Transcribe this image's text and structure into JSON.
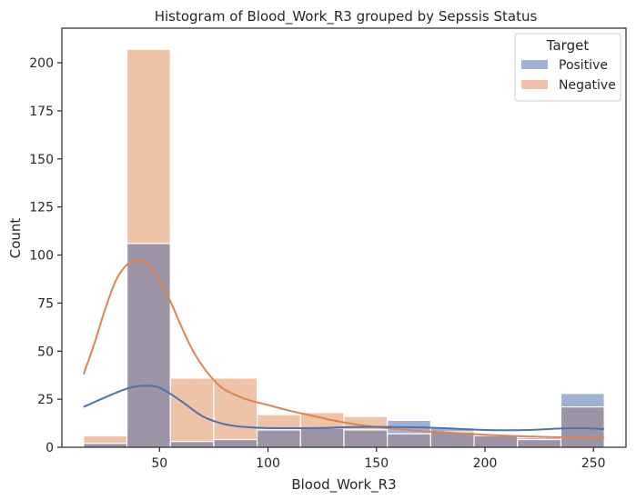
{
  "chart_data": {
    "type": "bar",
    "title": "Histogram of Blood_Work_R3 grouped by Sepssis  Status",
    "xlabel": "Blood_Work_R3",
    "ylabel": "Count",
    "xlim": [
      5,
      265
    ],
    "ylim": [
      0,
      218
    ],
    "xticks": [
      50,
      100,
      150,
      200,
      250
    ],
    "yticks": [
      0,
      25,
      50,
      75,
      100,
      125,
      150,
      175,
      200
    ],
    "bins": [
      {
        "x0": 15,
        "x1": 35,
        "positive": 2,
        "negative": 6
      },
      {
        "x0": 35,
        "x1": 55,
        "positive": 106,
        "negative": 207
      },
      {
        "x0": 55,
        "x1": 75,
        "positive": 3,
        "negative": 36
      },
      {
        "x0": 75,
        "x1": 95,
        "positive": 4,
        "negative": 36
      },
      {
        "x0": 95,
        "x1": 115,
        "positive": 9,
        "negative": 17
      },
      {
        "x0": 115,
        "x1": 135,
        "positive": 10,
        "negative": 18
      },
      {
        "x0": 135,
        "x1": 155,
        "positive": 9,
        "negative": 16
      },
      {
        "x0": 155,
        "x1": 175,
        "positive": 14,
        "negative": 7
      },
      {
        "x0": 175,
        "x1": 195,
        "positive": 10,
        "negative": 8
      },
      {
        "x0": 195,
        "x1": 215,
        "positive": 6,
        "negative": 6
      },
      {
        "x0": 215,
        "x1": 235,
        "positive": 5,
        "negative": 4
      },
      {
        "x0": 235,
        "x1": 255,
        "positive": 28,
        "negative": 21
      }
    ],
    "kde": {
      "positive": [
        [
          15,
          21
        ],
        [
          25,
          26
        ],
        [
          35,
          30.5
        ],
        [
          42,
          32
        ],
        [
          50,
          31
        ],
        [
          60,
          24
        ],
        [
          70,
          16
        ],
        [
          80,
          12
        ],
        [
          90,
          10.5
        ],
        [
          100,
          10
        ],
        [
          120,
          10
        ],
        [
          140,
          10.5
        ],
        [
          160,
          10.5
        ],
        [
          180,
          10
        ],
        [
          200,
          9
        ],
        [
          220,
          9
        ],
        [
          240,
          10
        ],
        [
          255,
          9.5
        ]
      ],
      "negative": [
        [
          15,
          38
        ],
        [
          20,
          54
        ],
        [
          25,
          72
        ],
        [
          30,
          87
        ],
        [
          35,
          95
        ],
        [
          40,
          97.5
        ],
        [
          45,
          95
        ],
        [
          50,
          87
        ],
        [
          55,
          76
        ],
        [
          60,
          63
        ],
        [
          65,
          51
        ],
        [
          70,
          42
        ],
        [
          75,
          35
        ],
        [
          80,
          30
        ],
        [
          90,
          25
        ],
        [
          100,
          22
        ],
        [
          110,
          19
        ],
        [
          120,
          16.5
        ],
        [
          130,
          14
        ],
        [
          140,
          12
        ],
        [
          150,
          10.5
        ],
        [
          160,
          9.5
        ],
        [
          170,
          8.5
        ],
        [
          180,
          7.8
        ],
        [
          190,
          7.2
        ],
        [
          200,
          6.5
        ],
        [
          210,
          6
        ],
        [
          220,
          5.6
        ],
        [
          230,
          5.3
        ],
        [
          240,
          5.1
        ],
        [
          250,
          5
        ],
        [
          255,
          5
        ]
      ]
    },
    "legend": {
      "title": "Target",
      "placement": "top-right",
      "entries": [
        "Positive",
        "Negative"
      ]
    },
    "colors": {
      "positive_fill": "#a1b1d6",
      "negative_fill": "#eec3a7",
      "overlap_fill": "#9c93a5",
      "positive_line": "#4c72b0",
      "negative_line": "#dd8452"
    },
    "grid": false
  }
}
